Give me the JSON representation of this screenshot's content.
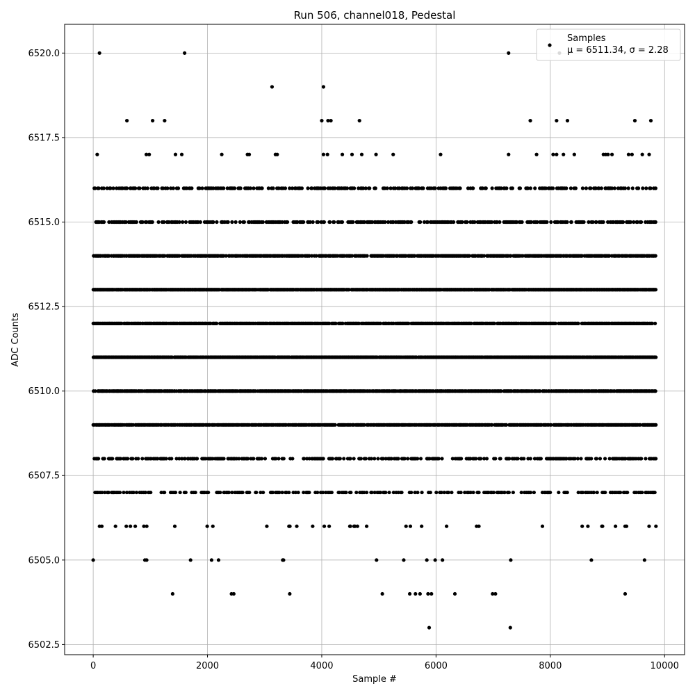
{
  "chart_data": {
    "type": "scatter",
    "title": "Run 506, channel018, Pedestal",
    "xlabel": "Sample #",
    "ylabel": "ADC Counts",
    "xlim": [
      -500,
      10350
    ],
    "ylim": [
      6502.2,
      6520.85
    ],
    "xticks": [
      0,
      2000,
      4000,
      6000,
      8000,
      10000
    ],
    "yticks": [
      6502.5,
      6505.0,
      6507.5,
      6510.0,
      6512.5,
      6515.0,
      6517.5,
      6520.0
    ],
    "xtick_labels": [
      "0",
      "2000",
      "4000",
      "6000",
      "8000",
      "10000"
    ],
    "ytick_labels": [
      "6502.5",
      "6505.0",
      "6507.5",
      "6510.0",
      "6512.5",
      "6515.0",
      "6517.5",
      "6520.0"
    ],
    "grid": true,
    "legend": {
      "placement": "top-right",
      "entries": [
        "Samples",
        "μ = 6511.34, σ = 2.28"
      ]
    },
    "sample_count_x_max": 9850,
    "series": [
      {
        "name": "Samples",
        "color": "#000000",
        "level_points": [
          {
            "y": 6520,
            "x": [
              110,
              1600,
              7270,
              8160
            ]
          },
          {
            "y": 6519,
            "x": [
              3130,
              4030
            ]
          },
          {
            "y": 6518,
            "x": [
              590,
              1040,
              1250,
              4000,
              4110,
              4160,
              4660,
              7650,
              8110,
              8300,
              9480,
              9760
            ]
          },
          {
            "y": 6517,
            "x": [
              70,
              930,
              980,
              1440,
              1550,
              2250,
              2700,
              2730,
              3190,
              3220,
              4030,
              4100,
              4360,
              4530,
              4700,
              4950,
              5250,
              6080,
              7270,
              7760,
              8050,
              8110,
              8230,
              8420,
              8930,
              8970,
              9010,
              9080,
              9370,
              9430,
              9610,
              9730
            ]
          },
          {
            "y": 6504,
            "x": [
              1390,
              2420,
              2460,
              3440,
              5060,
              5540,
              5640,
              5720,
              5860,
              5920,
              6330,
              6990,
              7040,
              9310
            ]
          },
          {
            "y": 6503,
            "x": [
              5880,
              7300
            ]
          }
        ],
        "dense_levels": [
          6505,
          6506,
          6507,
          6508,
          6509,
          6510,
          6511,
          6512,
          6513,
          6514,
          6515,
          6516
        ],
        "dense_level_density": {
          "6505": 0.02,
          "6506": 0.06,
          "6507": 0.35,
          "6508": 0.45,
          "6509": 0.85,
          "6510": 0.9,
          "6511": 0.95,
          "6512": 0.85,
          "6513": 0.97,
          "6514": 0.8,
          "6515": 0.5,
          "6516": 0.4
        }
      }
    ]
  }
}
